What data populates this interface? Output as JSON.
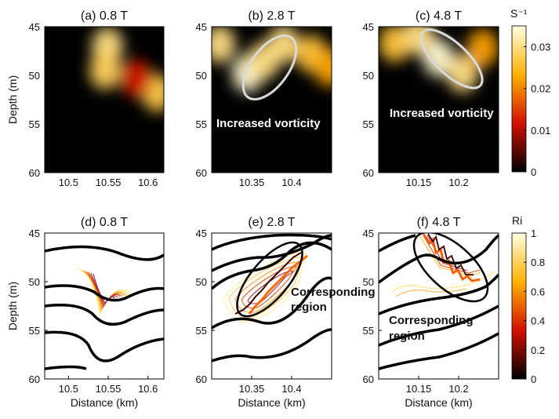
{
  "figure": {
    "colormap": "hot",
    "contour_color": "#000000",
    "ellipse_color_top": "#d9d9d9",
    "ellipse_color_bottom": "#000000",
    "colorbar_top": {
      "label": "S⁻¹",
      "ticks": [
        "0.03",
        "0.02",
        "0.01",
        "0"
      ],
      "range": [
        0,
        0.035
      ]
    },
    "colorbar_bottom": {
      "label": "Ri",
      "ticks": [
        "1",
        "0.8",
        "0.6",
        "0.4",
        "0.2",
        "0"
      ],
      "range": [
        0,
        1
      ]
    }
  },
  "chart_data": [
    {
      "type": "heatmap",
      "title": "(a) 0.8 T",
      "ylabel": "Depth (m)",
      "xlabel": "",
      "ylim": [
        45,
        60
      ],
      "xlim": [
        10.47,
        10.62
      ],
      "xticks": [
        "10.5",
        "10.55",
        "10.6"
      ],
      "xtick_values": [
        10.5,
        10.55,
        10.6
      ],
      "yticks": [
        "45",
        "50",
        "55",
        "60"
      ],
      "ytick_values": [
        45,
        50,
        55,
        60
      ],
      "blobs": [
        {
          "x": 10.549,
          "y": 47.0,
          "intensity": 0.03
        },
        {
          "x": 10.546,
          "y": 49.5,
          "intensity": 0.028
        },
        {
          "x": 10.612,
          "y": 51.8,
          "intensity": 0.027
        },
        {
          "x": 10.585,
          "y": 50.3,
          "intensity": 0.012
        }
      ],
      "annotation": ""
    },
    {
      "type": "heatmap",
      "title": "(b) 2.8 T",
      "ylabel": "",
      "xlabel": "",
      "ylim": [
        45,
        60
      ],
      "xlim": [
        10.3,
        10.45
      ],
      "xticks": [
        "10.35",
        "10.4"
      ],
      "xtick_values": [
        10.35,
        10.4
      ],
      "yticks": [
        "45",
        "50",
        "55",
        "60"
      ],
      "ytick_values": [
        45,
        50,
        55,
        60
      ],
      "blobs": [
        {
          "x": 10.31,
          "y": 46.8,
          "intensity": 0.03
        },
        {
          "x": 10.345,
          "y": 49.8,
          "intensity": 0.034
        },
        {
          "x": 10.365,
          "y": 48.5,
          "intensity": 0.03
        },
        {
          "x": 10.39,
          "y": 46.8,
          "intensity": 0.03
        },
        {
          "x": 10.425,
          "y": 47.8,
          "intensity": 0.026
        },
        {
          "x": 10.448,
          "y": 49.2,
          "intensity": 0.022
        }
      ],
      "annotation": "Increased vorticity"
    },
    {
      "type": "heatmap",
      "title": "(c) 4.8 T",
      "ylabel": "",
      "xlabel": "",
      "ylim": [
        45,
        60
      ],
      "xlim": [
        10.1,
        10.25
      ],
      "xticks": [
        "10.15",
        "10.2"
      ],
      "xtick_values": [
        10.15,
        10.2
      ],
      "yticks": [
        "45",
        "50",
        "55",
        "60"
      ],
      "ytick_values": [
        45,
        50,
        55,
        60
      ],
      "blobs": [
        {
          "x": 10.12,
          "y": 46.7,
          "intensity": 0.026
        },
        {
          "x": 10.15,
          "y": 46.0,
          "intensity": 0.03
        },
        {
          "x": 10.175,
          "y": 48.2,
          "intensity": 0.034
        },
        {
          "x": 10.205,
          "y": 49.8,
          "intensity": 0.03
        },
        {
          "x": 10.23,
          "y": 47.2,
          "intensity": 0.022
        }
      ],
      "annotation": "Increased vorticity"
    },
    {
      "type": "contour",
      "title": "(d) 0.8 T",
      "ylabel": "Depth (m)",
      "xlabel": "Distance (km)",
      "ylim": [
        45,
        60
      ],
      "xlim": [
        10.47,
        10.62
      ],
      "xticks": [
        "10.5",
        "10.55",
        "10.6"
      ],
      "xtick_values": [
        10.5,
        10.55,
        10.6
      ],
      "yticks": [
        "45",
        "50",
        "55",
        "60"
      ],
      "ytick_values": [
        45,
        50,
        55,
        60
      ],
      "annotation": ""
    },
    {
      "type": "contour",
      "title": "(e) 2.8 T",
      "ylabel": "",
      "xlabel": "Distance (km)",
      "ylim": [
        45,
        60
      ],
      "xlim": [
        10.3,
        10.45
      ],
      "xticks": [
        "10.35",
        "10.4"
      ],
      "xtick_values": [
        10.35,
        10.4
      ],
      "yticks": [
        "45",
        "50",
        "55",
        "60"
      ],
      "ytick_values": [
        45,
        50,
        55,
        60
      ],
      "annotation_lines": [
        "Corresponding",
        "region"
      ]
    },
    {
      "type": "contour",
      "title": "(f) 4.8 T",
      "ylabel": "",
      "xlabel": "Distance (km)",
      "ylim": [
        45,
        60
      ],
      "xlim": [
        10.1,
        10.25
      ],
      "xticks": [
        "10.15",
        "10.2"
      ],
      "xtick_values": [
        10.15,
        10.2
      ],
      "yticks": [
        "45",
        "50",
        "55",
        "60"
      ],
      "ytick_values": [
        45,
        50,
        55,
        60
      ],
      "annotation_lines": [
        "Corresponding",
        "region"
      ]
    }
  ]
}
